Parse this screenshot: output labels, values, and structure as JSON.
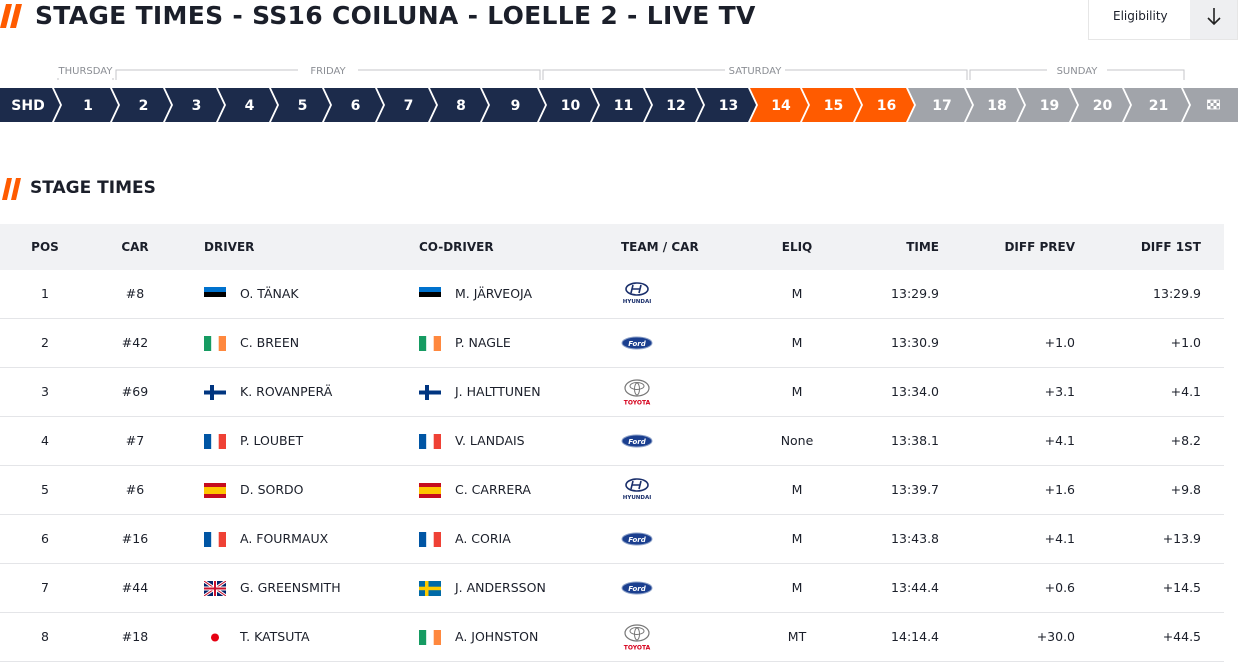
{
  "header": {
    "title": "STAGE TIMES - SS16 COILUNA - LOELLE 2 - LIVE TV",
    "eligibility": "Eligibility"
  },
  "stage_nav": {
    "shakedown": "SHD",
    "days": [
      {
        "name": "THURSDAY",
        "stages": [
          "1"
        ]
      },
      {
        "name": "FRIDAY",
        "stages": [
          "2",
          "3",
          "4",
          "5",
          "6",
          "7",
          "8",
          "9"
        ]
      },
      {
        "name": "SATURDAY",
        "stages": [
          "10",
          "11",
          "12",
          "13",
          "14",
          "15",
          "16",
          "17"
        ]
      },
      {
        "name": "SUNDAY",
        "stages": [
          "18",
          "19",
          "20",
          "21"
        ]
      }
    ]
  },
  "section_title": "STAGE TIMES",
  "table": {
    "columns": [
      "POS",
      "CAR",
      "DRIVER",
      "CO-DRIVER",
      "TEAM / CAR",
      "ELIQ",
      "TIME",
      "DIFF PREV",
      "DIFF 1ST"
    ],
    "rows": [
      {
        "pos": 1,
        "car": "#8",
        "driver": "O. TÄNAK",
        "co_driver": "M. JÄRVEOJA",
        "team": "HYUNDAI",
        "eliq": "M",
        "time": "13:29.9",
        "diff_prev": null,
        "diff_1st": "13:29.9"
      },
      {
        "pos": 2,
        "car": "#42",
        "driver": "C. BREEN",
        "co_driver": "P. NAGLE",
        "team": "Ford",
        "eliq": "M",
        "time": "13:30.9",
        "diff_prev": "+1.0",
        "diff_1st": "+1.0"
      },
      {
        "pos": 3,
        "car": "#69",
        "driver": "K. ROVANPERÄ",
        "co_driver": "J. HALTTUNEN",
        "team": "TOYOTA",
        "eliq": "M",
        "time": "13:34.0",
        "diff_prev": "+3.1",
        "diff_1st": "+4.1"
      },
      {
        "pos": 4,
        "car": "#7",
        "driver": "P. LOUBET",
        "co_driver": "V. LANDAIS",
        "team": "Ford",
        "eliq": "None",
        "time": "13:38.1",
        "diff_prev": "+4.1",
        "diff_1st": "+8.2"
      },
      {
        "pos": 5,
        "car": "#6",
        "driver": "D. SORDO",
        "co_driver": "C. CARRERA",
        "team": "HYUNDAI",
        "eliq": "M",
        "time": "13:39.7",
        "diff_prev": "+1.6",
        "diff_1st": "+9.8"
      },
      {
        "pos": 6,
        "car": "#16",
        "driver": "A. FOURMAUX",
        "co_driver": "A. CORIA",
        "team": "Ford",
        "eliq": "M",
        "time": "13:43.8",
        "diff_prev": "+4.1",
        "diff_1st": "+13.9"
      },
      {
        "pos": 7,
        "car": "#44",
        "driver": "G. GREENSMITH",
        "co_driver": "J. ANDERSSON",
        "team": "Ford",
        "eliq": "M",
        "time": "13:44.4",
        "diff_prev": "+0.6",
        "diff_1st": "+14.5"
      },
      {
        "pos": 8,
        "car": "#18",
        "driver": "T. KATSUTA",
        "co_driver": "A. JOHNSTON",
        "team": "TOYOTA",
        "eliq": "MT",
        "time": "14:14.4",
        "diff_prev": "+30.0",
        "diff_1st": "+44.5"
      }
    ]
  }
}
